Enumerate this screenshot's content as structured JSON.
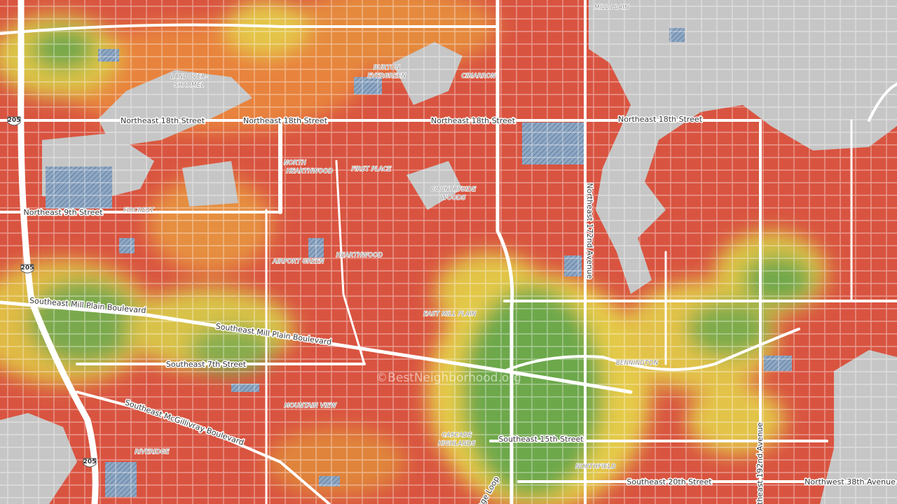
{
  "streets": [
    "Northeast 18th Street",
    "Northeast 18th Street",
    "Northeast 18th Street",
    "Northeast 18th Street",
    "Northeast 9th Street",
    "Southeast Mill Plain Boulevard",
    "Southeast Mill Plain Boulevard",
    "Southeast 7th Street",
    "Southeast McGillivray Boulevard",
    "Southeast 15th Street",
    "Southeast 20th Street",
    "Northwest 38th Avenue",
    "Northeast 172nd Avenue",
    "Northeast 192nd Avenue",
    "age Loop"
  ],
  "neighborhoods": [
    "LANDOVER-",
    "SHARMEL",
    "BURTON",
    "EVERGREEN",
    "CIMARRON",
    "MILL PLAIN",
    "NORTH",
    "HEARTHWOOD",
    "FIRST PLACE",
    "COUNTRYSIDE",
    "WOODS",
    "FIRCREST",
    "AIRPORT GREEN",
    "HEARTHWOOD",
    "EAST MILL PLAIN",
    "BENNINGTON",
    "MOUNTAIN VIEW",
    "CASCADE",
    "HIGHLANDS",
    "RIVERIDGE",
    "NORTHFIELD"
  ],
  "shields": [
    "205",
    "205",
    "205"
  ],
  "watermark": "©BestNeighborhood.org"
}
